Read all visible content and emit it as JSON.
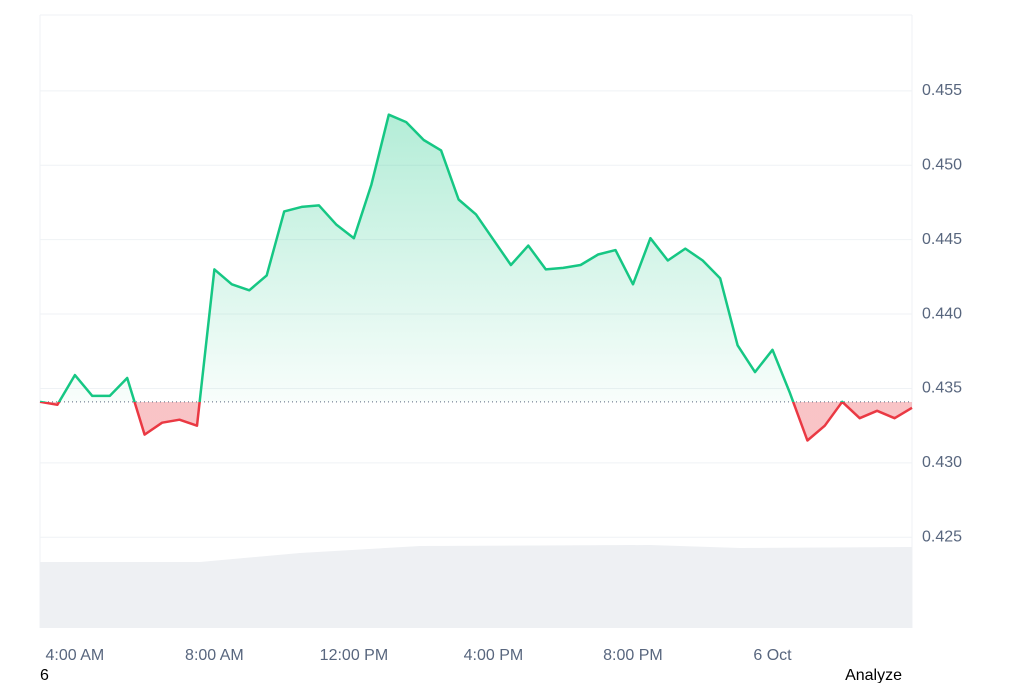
{
  "chart_data": {
    "type": "line",
    "categories": [
      null,
      null,
      "4:00 AM",
      null,
      null,
      null,
      null,
      null,
      null,
      null,
      "8:00 AM",
      null,
      null,
      null,
      null,
      null,
      null,
      null,
      "12:00 PM",
      null,
      null,
      null,
      null,
      null,
      null,
      null,
      "4:00 PM",
      null,
      null,
      null,
      null,
      null,
      null,
      null,
      "8:00 PM",
      null,
      null,
      null,
      null,
      null,
      null,
      null,
      "6 Oct",
      null,
      null,
      null,
      null,
      null,
      null,
      null,
      null
    ],
    "series": [
      {
        "values": [
          0.4341,
          0.4339,
          0.4359,
          0.4345,
          0.4345,
          0.4357,
          0.4319,
          0.4327,
          0.4329,
          0.4325,
          0.443,
          0.442,
          0.4416,
          0.4426,
          0.4469,
          0.4472,
          0.4473,
          0.446,
          0.4451,
          0.4487,
          0.4534,
          0.4529,
          0.4517,
          0.451,
          0.4477,
          0.4467,
          0.445,
          0.4433,
          0.4446,
          0.443,
          0.4431,
          0.4433,
          0.444,
          0.4443,
          0.442,
          0.4451,
          0.4436,
          0.4444,
          0.4436,
          0.4424,
          0.4379,
          0.4361,
          0.4376,
          0.4347,
          0.4315,
          0.4325,
          0.4341,
          0.433,
          0.4335,
          0.433,
          0.4337
        ]
      }
    ],
    "baseline": 0.4341,
    "up_color": "#16c784",
    "down_color": "#ea3943",
    "ylim": [
      0.4189,
      0.4601
    ],
    "yticks": [
      0.425,
      {
        "value": 0.43,
        "label": "0.430"
      },
      0.435,
      {
        "value": 0.44,
        "label": "0.440"
      },
      0.445,
      {
        "value": 0.45,
        "label": "0.450"
      },
      0.455
    ],
    "grid": true
  },
  "footer": {
    "left": "6",
    "right": "Analyze"
  }
}
